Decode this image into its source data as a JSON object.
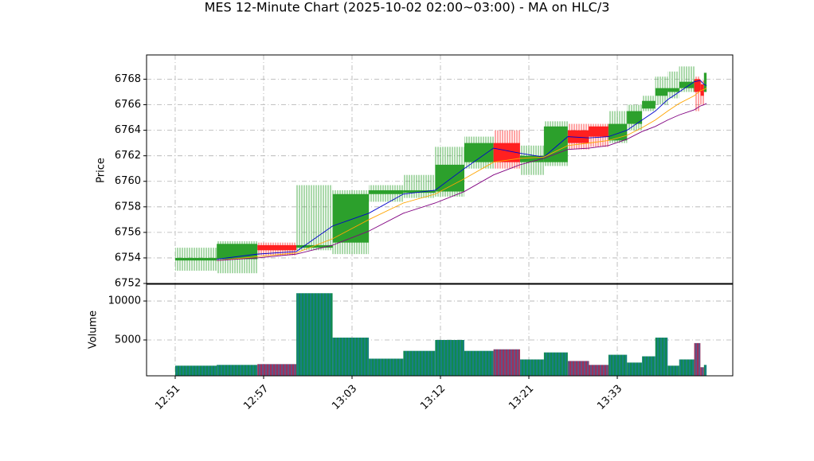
{
  "chart_data": {
    "type": "candlestick",
    "title": "MES 12-Minute Chart (2025-10-02 02:00~03:00) - MA on HLC/3",
    "ylabel": "Price",
    "volume_label": "Volume",
    "x_start": [
      0,
      0.47,
      0.93,
      1.37,
      1.78,
      2.19,
      2.58,
      2.94,
      3.27,
      3.6,
      3.9,
      4.17,
      4.44,
      4.68,
      4.9,
      5.11,
      5.28,
      5.43,
      5.57,
      5.7,
      5.87,
      5.94,
      5.98
    ],
    "x_end": [
      0.47,
      0.93,
      1.37,
      1.78,
      2.19,
      2.58,
      2.94,
      3.27,
      3.6,
      3.9,
      4.17,
      4.44,
      4.68,
      4.9,
      5.11,
      5.28,
      5.43,
      5.57,
      5.7,
      5.87,
      5.94,
      5.98,
      6.01
    ],
    "open": [
      6753.8,
      6753.9,
      6755.0,
      6754.8,
      6755.2,
      6759.0,
      6759.1,
      6759.2,
      6761.5,
      6763.0,
      6761.5,
      6761.5,
      6764.0,
      6764.3,
      6763.2,
      6764.5,
      6765.7,
      6766.7,
      6767.0,
      6767.3,
      6768.0,
      6767.6,
      6767.0
    ],
    "high": [
      6754.8,
      6755.3,
      6755.2,
      6759.7,
      6759.3,
      6759.7,
      6760.5,
      6762.7,
      6763.5,
      6764.0,
      6762.8,
      6764.7,
      6764.5,
      6764.5,
      6765.5,
      6766.0,
      6766.7,
      6768.2,
      6768.6,
      6769.0,
      6768.2,
      6767.9,
      6768.5
    ],
    "low": [
      6753.0,
      6752.8,
      6754.2,
      6754.6,
      6754.3,
      6758.4,
      6758.7,
      6758.8,
      6761.0,
      6761.0,
      6760.5,
      6761.2,
      6762.5,
      6762.7,
      6763.0,
      6764.0,
      6765.5,
      6766.0,
      6766.5,
      6767.0,
      6765.5,
      6766.0,
      6767.0
    ],
    "close": [
      6754.0,
      6755.1,
      6754.6,
      6755.0,
      6759.0,
      6759.3,
      6759.3,
      6761.3,
      6763.0,
      6761.5,
      6762.0,
      6764.3,
      6763.0,
      6763.5,
      6764.5,
      6765.5,
      6766.3,
      6767.3,
      6767.3,
      6767.8,
      6767.0,
      6766.7,
      6768.5
    ],
    "volume": [
      1700,
      1800,
      1900,
      11000,
      5300,
      2600,
      3600,
      5000,
      3600,
      3800,
      2500,
      3400,
      2300,
      1800,
      3100,
      2100,
      2900,
      5300,
      1700,
      2500,
      4600,
      1500,
      1800
    ],
    "up_color": "#2ca02c",
    "down_color": "#ff2020",
    "ma": [
      {
        "color": "#0000cc",
        "values": [
          6753.9,
          6754.3,
          6754.5,
          6756.5,
          6757.5,
          6759.0,
          6759.3,
          6761.0,
          6762.6,
          6762.2,
          6761.9,
          6763.5,
          6763.4,
          6763.5,
          6764.0,
          6764.8,
          6765.5,
          6766.4,
          6767.0,
          6767.8,
          6767.9,
          6767.6,
          6767.5
        ]
      },
      {
        "color": "#ffa500",
        "values": [
          6753.8,
          6754.1,
          6754.4,
          6755.5,
          6757.0,
          6758.3,
          6759.0,
          6760.2,
          6761.5,
          6761.8,
          6761.9,
          6762.8,
          6763.0,
          6763.2,
          6763.6,
          6764.2,
          6764.8,
          6765.5,
          6766.1,
          6766.7,
          6767.1,
          6767.2,
          6767.3
        ]
      },
      {
        "color": "#800080",
        "values": [
          6753.8,
          6754.0,
          6754.3,
          6755.0,
          6756.1,
          6757.5,
          6758.3,
          6759.2,
          6760.5,
          6761.3,
          6761.8,
          6762.5,
          6762.6,
          6762.8,
          6763.3,
          6763.9,
          6764.3,
          6764.8,
          6765.2,
          6765.6,
          6765.9,
          6766.0,
          6766.1
        ]
      }
    ],
    "xlim": [
      -0.324,
      6.306
    ],
    "xticks": [
      {
        "value": 0,
        "label": "12:51"
      },
      {
        "value": 1,
        "label": "12:57"
      },
      {
        "value": 2,
        "label": "13:03"
      },
      {
        "value": 3,
        "label": "13:12"
      },
      {
        "value": 4,
        "label": "13:21"
      },
      {
        "value": 5,
        "label": "13:33"
      }
    ],
    "ylim": [
      6752,
      6769.9
    ],
    "yticks": [
      6752,
      6754,
      6756,
      6758,
      6760,
      6762,
      6764,
      6766,
      6768
    ],
    "volume_ylim": [
      400,
      12150
    ],
    "volume_yticks": [
      5000,
      10000
    ],
    "grid": true
  }
}
